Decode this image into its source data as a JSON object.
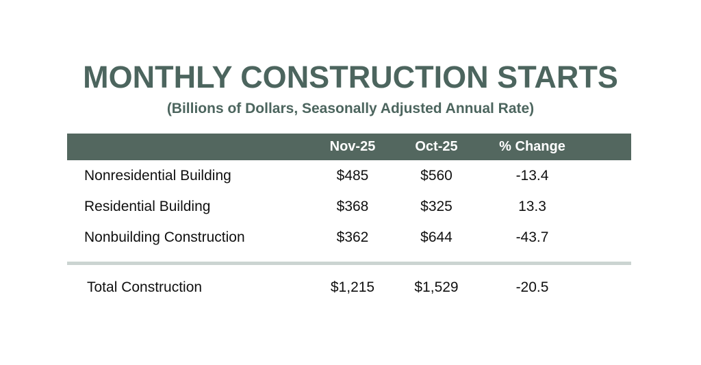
{
  "page": {
    "background": "#ffffff"
  },
  "colors": {
    "title_green": "#4c655e",
    "header_bar_green": "#53675f",
    "header_text_white": "#ffffff",
    "body_text": "#101010",
    "divider_gray": "#cbd4d1"
  },
  "chart_data": {
    "type": "table",
    "title": "MONTHLY CONSTRUCTION STARTS",
    "subtitle": "(Billions of Dollars, Seasonally Adjusted Annual Rate)",
    "columns": [
      "",
      "Nov-25",
      "Oct-25",
      "% Change"
    ],
    "rows": [
      {
        "category": "Nonresidential Building",
        "nov_25": "$485",
        "oct_25": "$560",
        "pct_change": "-13.4"
      },
      {
        "category": "Residential Building",
        "nov_25": "$368",
        "oct_25": "$325",
        "pct_change": "13.3"
      },
      {
        "category": "Nonbuilding Construction",
        "nov_25": "$362",
        "oct_25": "$644",
        "pct_change": "-43.7"
      }
    ],
    "total_row": {
      "category": "Total Construction",
      "nov_25": "$1,215",
      "oct_25": "$1,529",
      "pct_change": "-20.5"
    },
    "numeric_values": {
      "nov_25": [
        485,
        368,
        362
      ],
      "oct_25": [
        560,
        325,
        644
      ],
      "pct_change": [
        -13.4,
        13.3,
        -43.7
      ],
      "total_nov_25": 1215,
      "total_oct_25": 1529,
      "total_pct_change": -20.5
    },
    "layout_hints": {
      "units": "Billions of Dollars, Seasonally Adjusted Annual Rate",
      "header_fill": "#53675f",
      "grid": "off"
    }
  }
}
